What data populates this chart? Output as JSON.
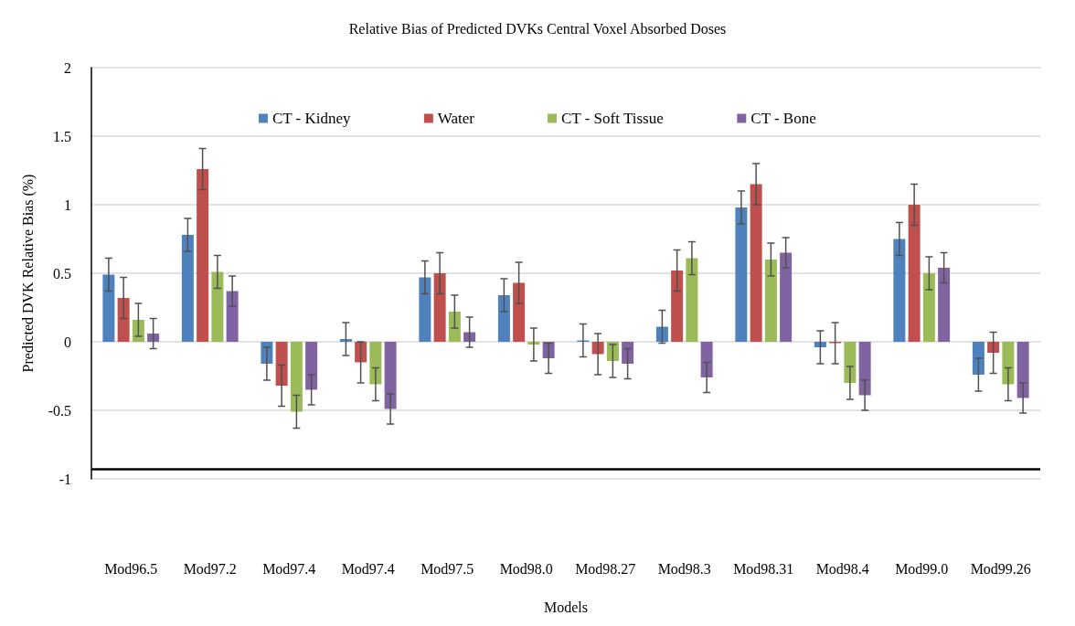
{
  "chart_data": {
    "type": "bar",
    "title": "Relative Bias of Predicted DVKs Central Voxel Absorbed Doses",
    "xlabel": "Models",
    "ylabel": "Predicted DVK Relative Bias (%)",
    "categories": [
      "Mod96.5",
      "Mod97.2",
      "Mod97.4",
      "Mod97.4",
      "Mod97.5",
      "Mod98.0",
      "Mod98.27",
      "Mod98.3",
      "Mod98.31",
      "Mod98.4",
      "Mod99.0",
      "Mod99.26"
    ],
    "series": [
      {
        "name": "CT - Kidney",
        "color": "#4f81bd",
        "values": [
          0.49,
          0.78,
          -0.16,
          0.02,
          0.47,
          0.34,
          0.01,
          0.11,
          0.98,
          -0.04,
          0.75,
          -0.24
        ],
        "errors": [
          0.12,
          0.12,
          0.12,
          0.12,
          0.12,
          0.12,
          0.12,
          0.12,
          0.12,
          0.12,
          0.12,
          0.12
        ]
      },
      {
        "name": "Water",
        "color": "#c0504d",
        "values": [
          0.32,
          1.26,
          -0.32,
          -0.15,
          0.5,
          0.43,
          -0.09,
          0.52,
          1.15,
          -0.01,
          1.0,
          -0.08
        ],
        "errors": [
          0.15,
          0.15,
          0.15,
          0.15,
          0.15,
          0.15,
          0.15,
          0.15,
          0.15,
          0.15,
          0.15,
          0.15
        ]
      },
      {
        "name": "CT - Soft Tissue",
        "color": "#9bbb59",
        "values": [
          0.16,
          0.51,
          -0.51,
          -0.31,
          0.22,
          -0.02,
          -0.14,
          0.61,
          0.6,
          -0.3,
          0.5,
          -0.31
        ],
        "errors": [
          0.12,
          0.12,
          0.12,
          0.12,
          0.12,
          0.12,
          0.12,
          0.12,
          0.12,
          0.12,
          0.12,
          0.12
        ]
      },
      {
        "name": "CT - Bone",
        "color": "#8064a2",
        "values": [
          0.06,
          0.37,
          -0.35,
          -0.49,
          0.07,
          -0.12,
          -0.16,
          -0.26,
          0.65,
          -0.39,
          0.54,
          -0.41
        ],
        "errors": [
          0.11,
          0.11,
          0.11,
          0.11,
          0.11,
          0.11,
          0.11,
          0.11,
          0.11,
          0.11,
          0.11,
          0.11
        ]
      }
    ],
    "ylim": [
      -1,
      2
    ],
    "yticks": [
      -1,
      -0.5,
      0,
      0.5,
      1,
      1.5,
      2
    ],
    "grid": "y",
    "legend": "top",
    "ref_lines": [
      {
        "axis": "y",
        "value": -0.93,
        "color": "#000000"
      }
    ]
  }
}
